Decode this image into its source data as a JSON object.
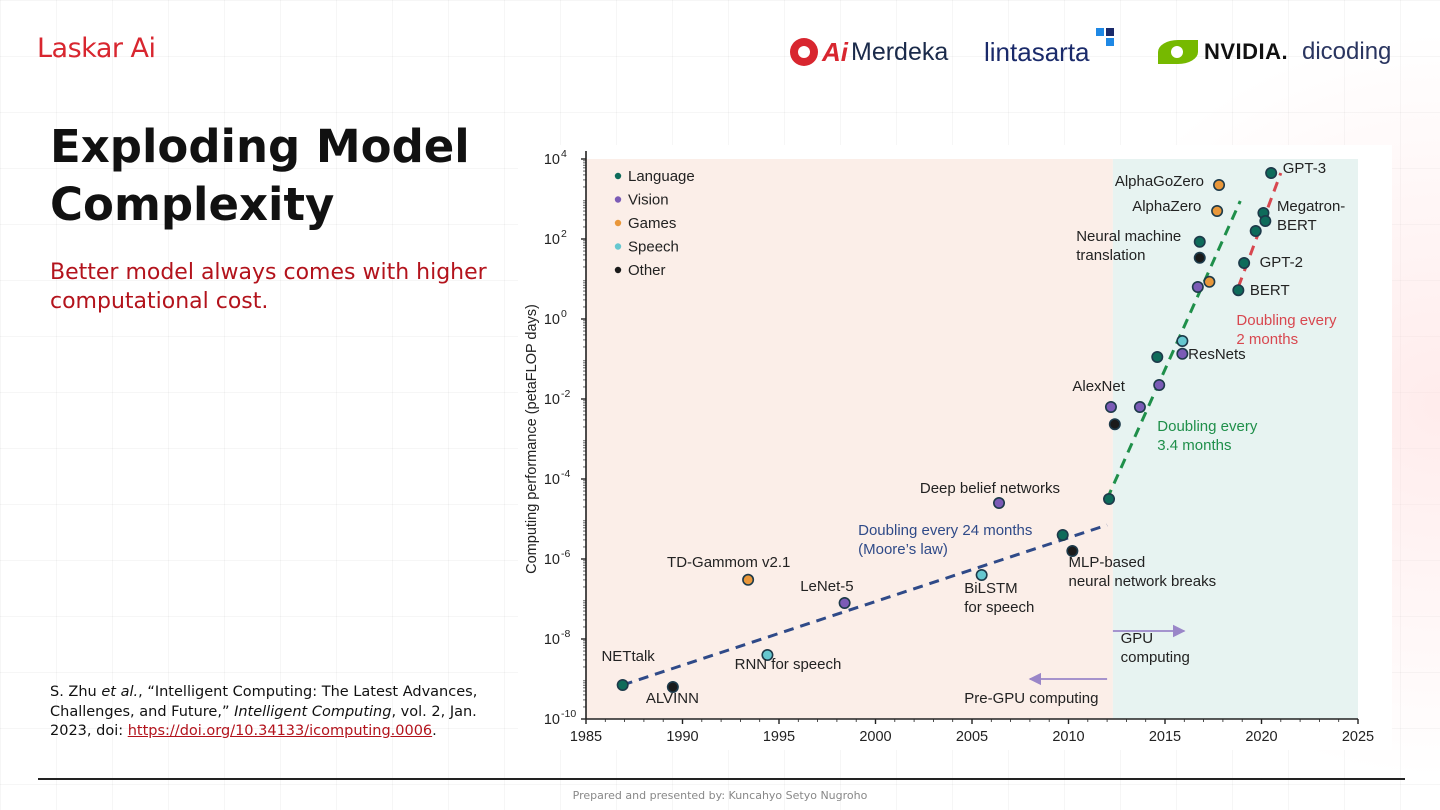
{
  "header": {
    "brand": "Laskar Ai",
    "partners": [
      {
        "name": "Merdeka",
        "prefix": "Ai",
        "icon": "aimerdeka-logo-icon"
      },
      {
        "name": "lintasarta",
        "icon": "lintasarta-logo-icon"
      },
      {
        "name": "NVIDIA.",
        "icon": "nvidia-eye-icon"
      },
      {
        "name": "dicoding",
        "icon": "dicoding-logo-icon"
      }
    ]
  },
  "slide": {
    "title": "Exploding Model Complexity",
    "subtitle": "Better model always comes with higher computational cost.",
    "citation": {
      "author": "S. Zhu",
      "etal": "et al.",
      "article": ", “Intelligent Computing: The Latest Advances, Challenges, and Future,” ",
      "journal": "Intelligent Computing",
      "details": ", vol. 2, Jan. 2023, doi: ",
      "link": "https://doi.org/10.34133/icomputing.0006",
      "end": "."
    }
  },
  "footer": {
    "text": "Prepared and presented by: Kuncahyo Setyo Nugroho"
  },
  "colors": {
    "accent": "#d8262f",
    "language": "#0e6b5a",
    "vision": "#7b5bb6",
    "games": "#e9973a",
    "speech": "#66c7cf",
    "other": "#1a1a1a",
    "moore_trend": "#2f4a88",
    "gpu_trend": "#1f8f4a",
    "large_trend": "#d8474f",
    "pre_gpu_bg": "#fbeee8",
    "gpu_bg": "#e7f3f1"
  },
  "chart_data": {
    "type": "scatter",
    "xlim": [
      1985,
      2025
    ],
    "ylim_log10": [
      -10,
      4
    ],
    "y_log_scale": true,
    "ylabel": "Computing performance (petaFLOP days)",
    "xlabel": "",
    "x_ticks": [
      "1985",
      "1990",
      "1995",
      "2000",
      "2005",
      "2010",
      "2015",
      "2020",
      "2025"
    ],
    "y_ticks": [
      {
        "exp": -10,
        "label": "10"
      },
      {
        "exp": -8,
        "label": "10"
      },
      {
        "exp": -6,
        "label": "10"
      },
      {
        "exp": -4,
        "label": "10"
      },
      {
        "exp": -2,
        "label": "10"
      },
      {
        "exp": 0,
        "label": "10"
      },
      {
        "exp": 2,
        "label": "10"
      },
      {
        "exp": 4,
        "label": "10"
      }
    ],
    "legend": {
      "placement": "top-left",
      "entries": [
        {
          "name": "Language",
          "category": "language"
        },
        {
          "name": "Vision",
          "category": "vision"
        },
        {
          "name": "Games",
          "category": "games"
        },
        {
          "name": "Speech",
          "category": "speech"
        },
        {
          "name": "Other",
          "category": "other"
        }
      ]
    },
    "era_split_year": 2012.3,
    "points": [
      {
        "x": 1986.9,
        "logy": -9.15,
        "cat": "language"
      },
      {
        "x": 1989.5,
        "logy": -9.2,
        "cat": "other"
      },
      {
        "x": 1993.4,
        "logy": -6.52,
        "cat": "games"
      },
      {
        "x": 1994.4,
        "logy": -8.4,
        "cat": "speech"
      },
      {
        "x": 1998.4,
        "logy": -7.1,
        "cat": "vision"
      },
      {
        "x": 2005.5,
        "logy": -6.4,
        "cat": "speech"
      },
      {
        "x": 2006.4,
        "logy": -4.6,
        "cat": "vision"
      },
      {
        "x": 2009.7,
        "logy": -5.4,
        "cat": "language"
      },
      {
        "x": 2010.2,
        "logy": -5.8,
        "cat": "other"
      },
      {
        "x": 2012.1,
        "logy": -4.5,
        "cat": "language"
      },
      {
        "x": 2012.2,
        "logy": -2.2,
        "cat": "vision"
      },
      {
        "x": 2012.4,
        "logy": -2.63,
        "cat": "other"
      },
      {
        "x": 2013.7,
        "logy": -2.2,
        "cat": "vision"
      },
      {
        "x": 2014.6,
        "logy": -0.95,
        "cat": "language"
      },
      {
        "x": 2014.7,
        "logy": -1.65,
        "cat": "vision"
      },
      {
        "x": 2015.9,
        "logy": -0.55,
        "cat": "speech"
      },
      {
        "x": 2015.9,
        "logy": -0.87,
        "cat": "vision"
      },
      {
        "x": 2016.7,
        "logy": 0.8,
        "cat": "vision"
      },
      {
        "x": 2016.8,
        "logy": 1.53,
        "cat": "other"
      },
      {
        "x": 2016.8,
        "logy": 1.93,
        "cat": "language"
      },
      {
        "x": 2017.3,
        "logy": 0.93,
        "cat": "games"
      },
      {
        "x": 2017.7,
        "logy": 2.7,
        "cat": "games"
      },
      {
        "x": 2017.8,
        "logy": 3.35,
        "cat": "games"
      },
      {
        "x": 2018.8,
        "logy": 0.72,
        "cat": "language"
      },
      {
        "x": 2019.1,
        "logy": 1.4,
        "cat": "language"
      },
      {
        "x": 2019.7,
        "logy": 2.2,
        "cat": "language"
      },
      {
        "x": 2020.1,
        "logy": 2.65,
        "cat": "language"
      },
      {
        "x": 2020.2,
        "logy": 2.45,
        "cat": "language"
      },
      {
        "x": 2020.5,
        "logy": 3.65,
        "cat": "language"
      }
    ],
    "annotations": [
      {
        "key": "nettalk",
        "lines": [
          "NETtalk"
        ],
        "x": 1985.8,
        "logy": -8.55
      },
      {
        "key": "alvinn",
        "lines": [
          "ALVINN"
        ],
        "x": 1988.1,
        "logy": -9.6
      },
      {
        "key": "tdgammon",
        "lines": [
          "TD-Gammom v2.1"
        ],
        "x": 1989.2,
        "logy": -6.2
      },
      {
        "key": "rnn",
        "lines": [
          "RNN for speech"
        ],
        "x": 1992.7,
        "logy": -8.75
      },
      {
        "key": "lenet",
        "lines": [
          "LeNet-5"
        ],
        "x": 1996.1,
        "logy": -6.8
      },
      {
        "key": "bilstm",
        "lines": [
          "BiLSTM",
          "for speech"
        ],
        "x": 2004.6,
        "logy": -6.85
      },
      {
        "key": "dbn",
        "lines": [
          "Deep belief networks"
        ],
        "x": 2002.3,
        "logy": -4.35
      },
      {
        "key": "moore",
        "lines": [
          "Doubling every 24 months",
          "(Moore’s law)"
        ],
        "x": 1999.1,
        "logy": -5.4,
        "color": "#2f4a88"
      },
      {
        "key": "mlp",
        "lines": [
          "MLP-based",
          "neural network breaks"
        ],
        "x": 2010.0,
        "logy": -6.2
      },
      {
        "key": "gpu",
        "lines": [
          "GPU",
          "computing"
        ],
        "x": 2012.7,
        "logy": -8.1
      },
      {
        "key": "pregpu",
        "lines": [
          "Pre-GPU computing"
        ],
        "x": 2004.6,
        "logy": -9.6
      },
      {
        "key": "alexnet",
        "lines": [
          "AlexNet"
        ],
        "x": 2010.2,
        "logy": -1.8
      },
      {
        "key": "doubling34",
        "lines": [
          "Doubling every",
          "3.4 months"
        ],
        "x": 2014.6,
        "logy": -2.8,
        "color": "#1f8f4a"
      },
      {
        "key": "resnets",
        "lines": [
          "ResNets"
        ],
        "x": 2016.2,
        "logy": -1.0
      },
      {
        "key": "nmt",
        "lines": [
          "Neural machine",
          "translation"
        ],
        "x": 2010.4,
        "logy": 1.95
      },
      {
        "key": "alphazero",
        "lines": [
          "AlphaZero"
        ],
        "x": 2013.3,
        "logy": 2.7
      },
      {
        "key": "alphagozero",
        "lines": [
          "AlphaGoZero"
        ],
        "x": 2012.4,
        "logy": 3.32
      },
      {
        "key": "gpt3",
        "lines": [
          "GPT-3"
        ],
        "x": 2021.1,
        "logy": 3.65
      },
      {
        "key": "megatron",
        "lines": [
          "Megatron-",
          "BERT"
        ],
        "x": 2020.8,
        "logy": 2.7
      },
      {
        "key": "gpt2",
        "lines": [
          "GPT-2"
        ],
        "x": 2019.9,
        "logy": 1.3
      },
      {
        "key": "bert",
        "lines": [
          "BERT"
        ],
        "x": 2019.4,
        "logy": 0.6
      },
      {
        "key": "doubling2",
        "lines": [
          "Doubling every",
          "2 months"
        ],
        "x": 2018.7,
        "logy": -0.15,
        "color": "#d8474f"
      }
    ],
    "trend_lines": [
      {
        "name": "Doubling every 24 months",
        "color": "#2f4a88",
        "from": [
          1986.9,
          -9.15
        ],
        "to": [
          2012.0,
          -5.15
        ]
      },
      {
        "name": "Doubling every 3.4 months",
        "color": "#1f8f4a",
        "from": [
          2012.0,
          -4.5
        ],
        "to": [
          2018.9,
          2.95
        ]
      },
      {
        "name": "Doubling every 2 months",
        "color": "#d8474f",
        "from": [
          2018.8,
          0.8
        ],
        "to": [
          2021.0,
          3.65
        ]
      }
    ],
    "arrows": [
      {
        "name": "to GPU era",
        "from": [
          2012.3,
          -7.8
        ],
        "to": [
          2016.0,
          -7.8
        ]
      },
      {
        "name": "to pre-GPU era",
        "from": [
          2012.0,
          -9.0
        ],
        "to": [
          2008.0,
          -9.0
        ]
      }
    ],
    "grid": false
  }
}
